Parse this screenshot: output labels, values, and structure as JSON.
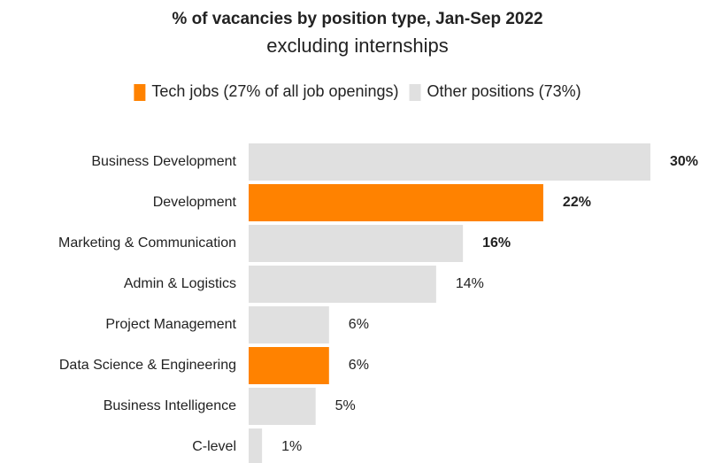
{
  "chart_data": {
    "type": "bar",
    "orientation": "horizontal",
    "title": "% of vacancies by position type, Jan-Sep 2022",
    "subtitle": "excluding internships",
    "categories": [
      "Business Development",
      "Development",
      "Marketing & Communication",
      "Admin & Logistics",
      "Project Management",
      "Data Science & Engineering",
      "Business Intelligence",
      "C-level"
    ],
    "series": [
      {
        "name": "Tech jobs (27% of all job openings)",
        "color": "#ff8200",
        "values": [
          null,
          22,
          null,
          null,
          null,
          6,
          null,
          null
        ],
        "value_labels": [
          null,
          "22%",
          null,
          null,
          null,
          "6%",
          null,
          null
        ]
      },
      {
        "name": "Other positions (73%)",
        "color": "#e0e0e0",
        "values": [
          30,
          null,
          16,
          14,
          6,
          null,
          5,
          1
        ],
        "value_labels": [
          "30%",
          null,
          "16%",
          "14%",
          "6%",
          null,
          "5%",
          "1%"
        ]
      }
    ],
    "legend": "top"
  }
}
